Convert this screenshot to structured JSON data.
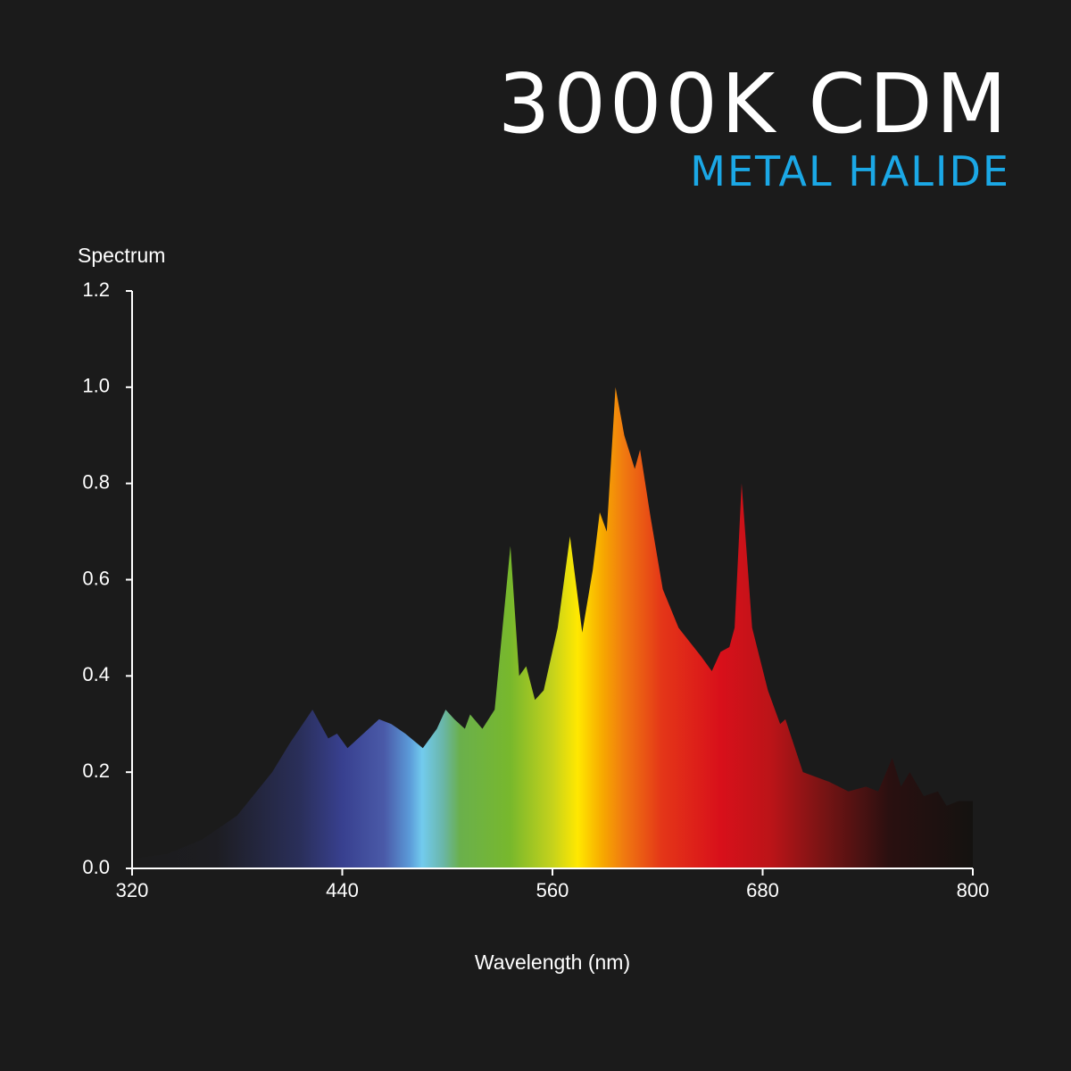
{
  "chart_data": {
    "type": "area",
    "title": "3000K CDM",
    "subtitle": "METAL HALIDE",
    "y_label": "Spectrum",
    "x_label": "Wavelength (nm)",
    "x": [
      320,
      340,
      360,
      380,
      400,
      410,
      423,
      432,
      437,
      443,
      461,
      468,
      476,
      486,
      494,
      499,
      504,
      510,
      513,
      520,
      527,
      536,
      541,
      545,
      550,
      555,
      563,
      570,
      577,
      583,
      587,
      591,
      596,
      601,
      607,
      610,
      616,
      623,
      632,
      645,
      651,
      656,
      661,
      664,
      668,
      674,
      683,
      690,
      693,
      703,
      718,
      729,
      739,
      746,
      754,
      759,
      764,
      772,
      780,
      785,
      792,
      800
    ],
    "values": [
      0.02,
      0.03,
      0.06,
      0.11,
      0.2,
      0.26,
      0.33,
      0.27,
      0.28,
      0.25,
      0.31,
      0.3,
      0.28,
      0.25,
      0.29,
      0.33,
      0.31,
      0.29,
      0.32,
      0.29,
      0.33,
      0.67,
      0.4,
      0.42,
      0.35,
      0.37,
      0.5,
      0.69,
      0.49,
      0.62,
      0.74,
      0.7,
      1.0,
      0.9,
      0.83,
      0.87,
      0.73,
      0.58,
      0.5,
      0.44,
      0.41,
      0.45,
      0.46,
      0.5,
      0.8,
      0.5,
      0.37,
      0.3,
      0.31,
      0.2,
      0.18,
      0.16,
      0.17,
      0.16,
      0.23,
      0.17,
      0.2,
      0.15,
      0.16,
      0.13,
      0.14,
      0.14
    ],
    "xlim": [
      320,
      800
    ],
    "ylim": [
      0,
      1.2
    ],
    "xticks": [
      320,
      440,
      560,
      680,
      800
    ],
    "yticks": [
      {
        "value": 0,
        "label": "0.0"
      },
      0.2,
      0.4,
      0.6,
      0.8,
      {
        "value": 1,
        "label": "1.0"
      },
      1.2
    ]
  }
}
